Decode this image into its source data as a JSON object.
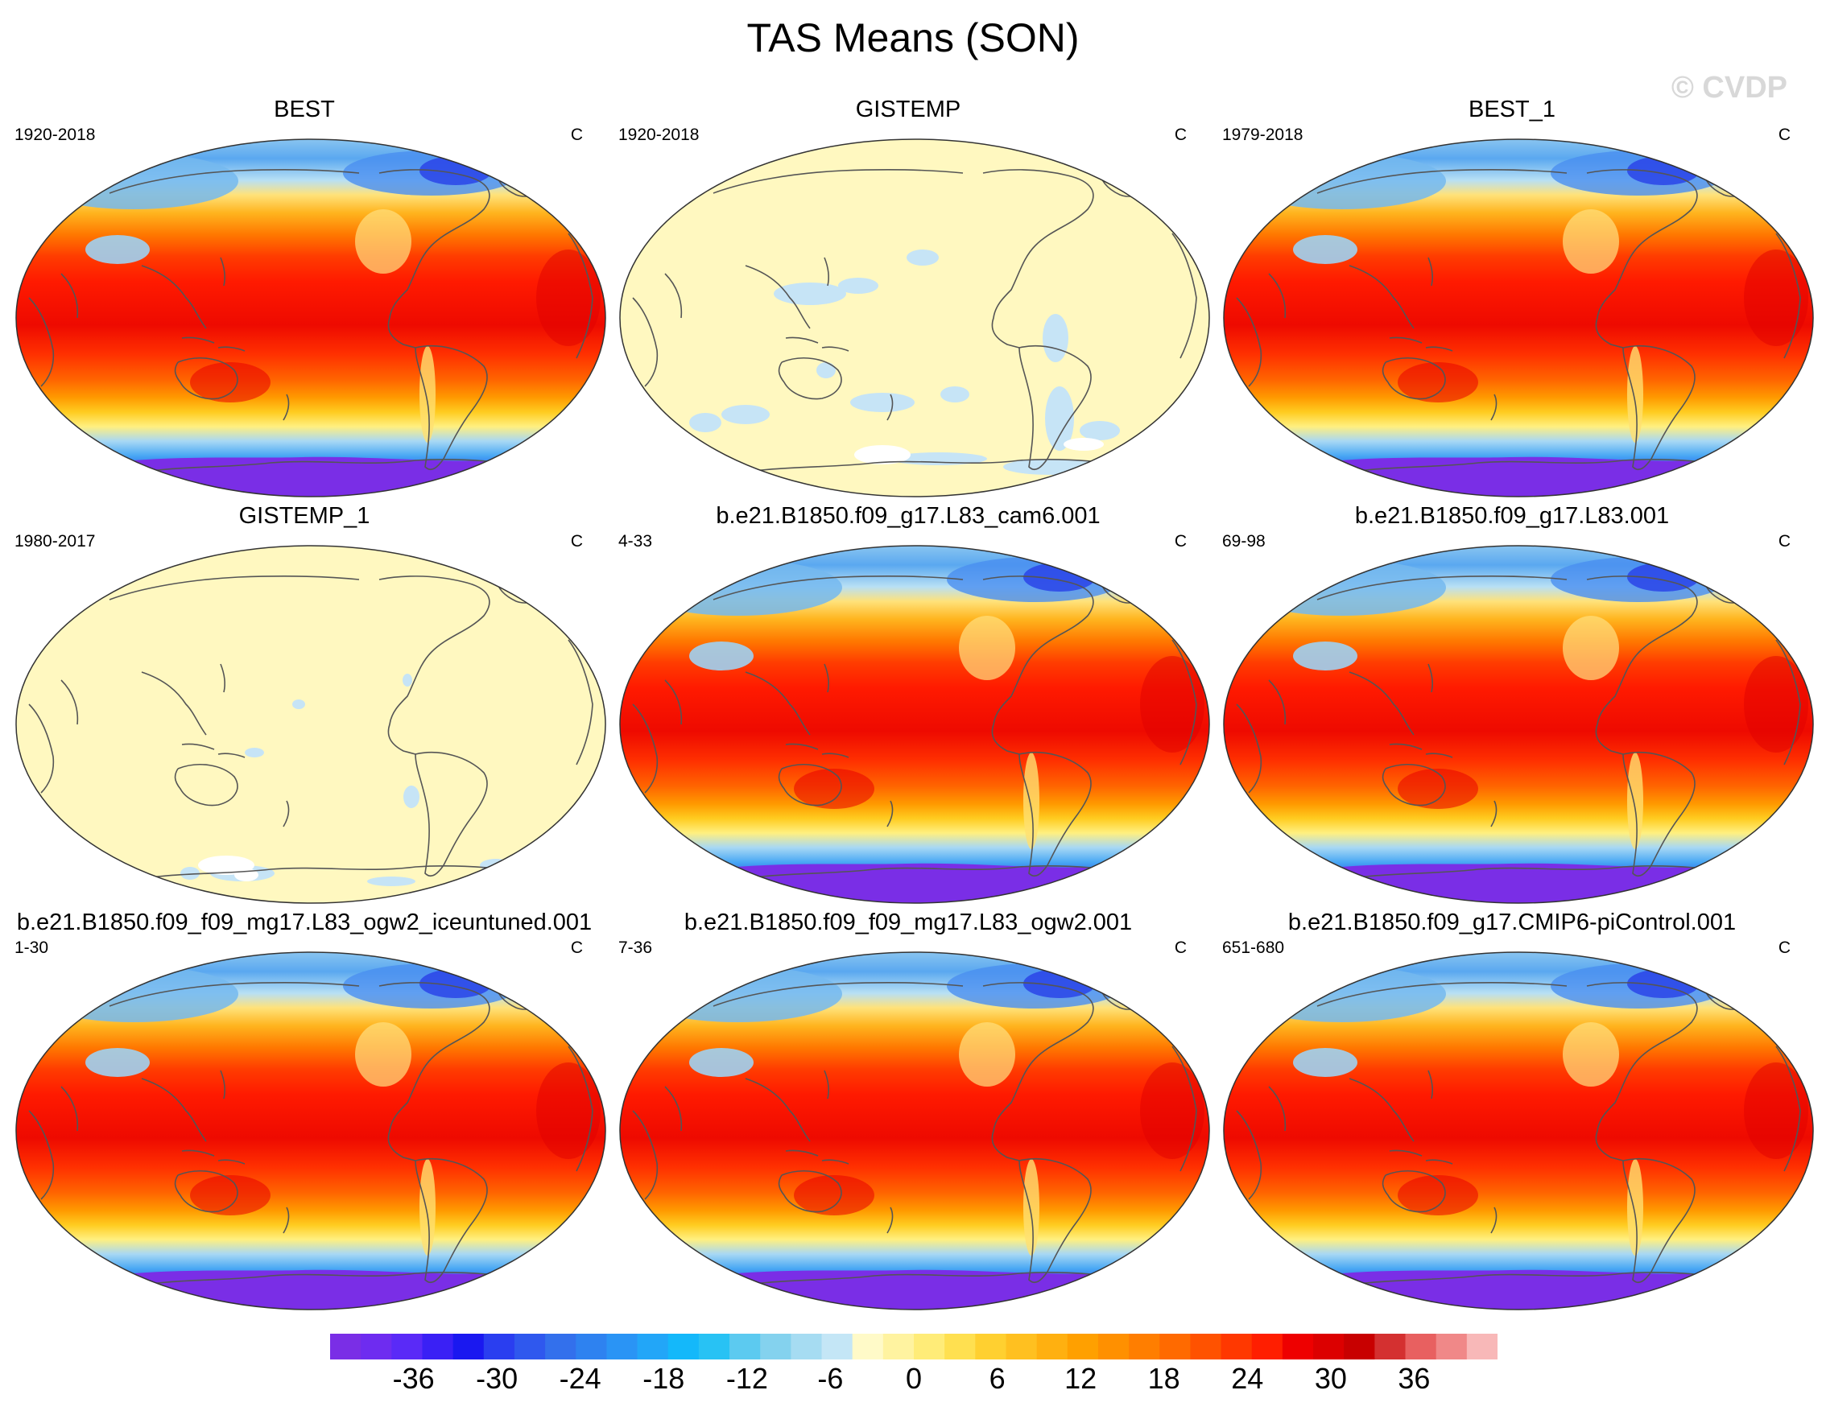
{
  "figure": {
    "title": "TAS Means (SON)",
    "watermark": "© CVDP"
  },
  "panels": [
    {
      "title": "BEST",
      "period": "1920-2018",
      "unit": "C",
      "style": "model"
    },
    {
      "title": "GISTEMP",
      "period": "1920-2018",
      "unit": "C",
      "style": "obs"
    },
    {
      "title": "BEST_1",
      "period": "1979-2018",
      "unit": "C",
      "style": "model"
    },
    {
      "title": "GISTEMP_1",
      "period": "1980-2017",
      "unit": "C",
      "style": "obs"
    },
    {
      "title": "b.e21.B1850.f09_g17.L83_cam6.001",
      "period": "4-33",
      "unit": "C",
      "style": "model"
    },
    {
      "title": "b.e21.B1850.f09_g17.L83.001",
      "period": "69-98",
      "unit": "C",
      "style": "model"
    },
    {
      "title": "b.e21.B1850.f09_f09_mg17.L83_ogw2_iceuntuned.001",
      "period": "1-30",
      "unit": "C",
      "style": "model"
    },
    {
      "title": "b.e21.B1850.f09_f09_mg17.L83_ogw2.001",
      "period": "7-36",
      "unit": "C",
      "style": "model"
    },
    {
      "title": "b.e21.B1850.f09_g17.CMIP6-piControl.001",
      "period": "651-680",
      "unit": "C",
      "style": "model"
    }
  ],
  "colorbar": {
    "labels": [
      "-36",
      "-30",
      "-24",
      "-18",
      "-12",
      "-6",
      "0",
      "6",
      "12",
      "18",
      "24",
      "30",
      "36"
    ],
    "label_values": [
      -36,
      -30,
      -24,
      -18,
      -12,
      -6,
      0,
      6,
      12,
      18,
      24,
      30,
      36
    ],
    "range": [
      -42,
      42
    ],
    "step": 2,
    "colors": [
      "#7a2ee6",
      "#6e2cf0",
      "#5a2af7",
      "#3a20f5",
      "#1a18f0",
      "#2a3ef0",
      "#2f58ee",
      "#3370ec",
      "#2e82f0",
      "#2a94f5",
      "#22a6f8",
      "#14b8fa",
      "#28c2f4",
      "#5ccaf0",
      "#84d2ee",
      "#a6dcf2",
      "#c4e6f6",
      "#fffac8",
      "#fff3a0",
      "#ffec78",
      "#ffe050",
      "#ffd030",
      "#ffc020",
      "#ffb010",
      "#ffa000",
      "#ff9000",
      "#ff7e00",
      "#ff6a00",
      "#ff5200",
      "#ff3800",
      "#ff1e00",
      "#ee0000",
      "#dc0000",
      "#c80000",
      "#d43030",
      "#e86060",
      "#f08888",
      "#f8b8b8"
    ]
  }
}
